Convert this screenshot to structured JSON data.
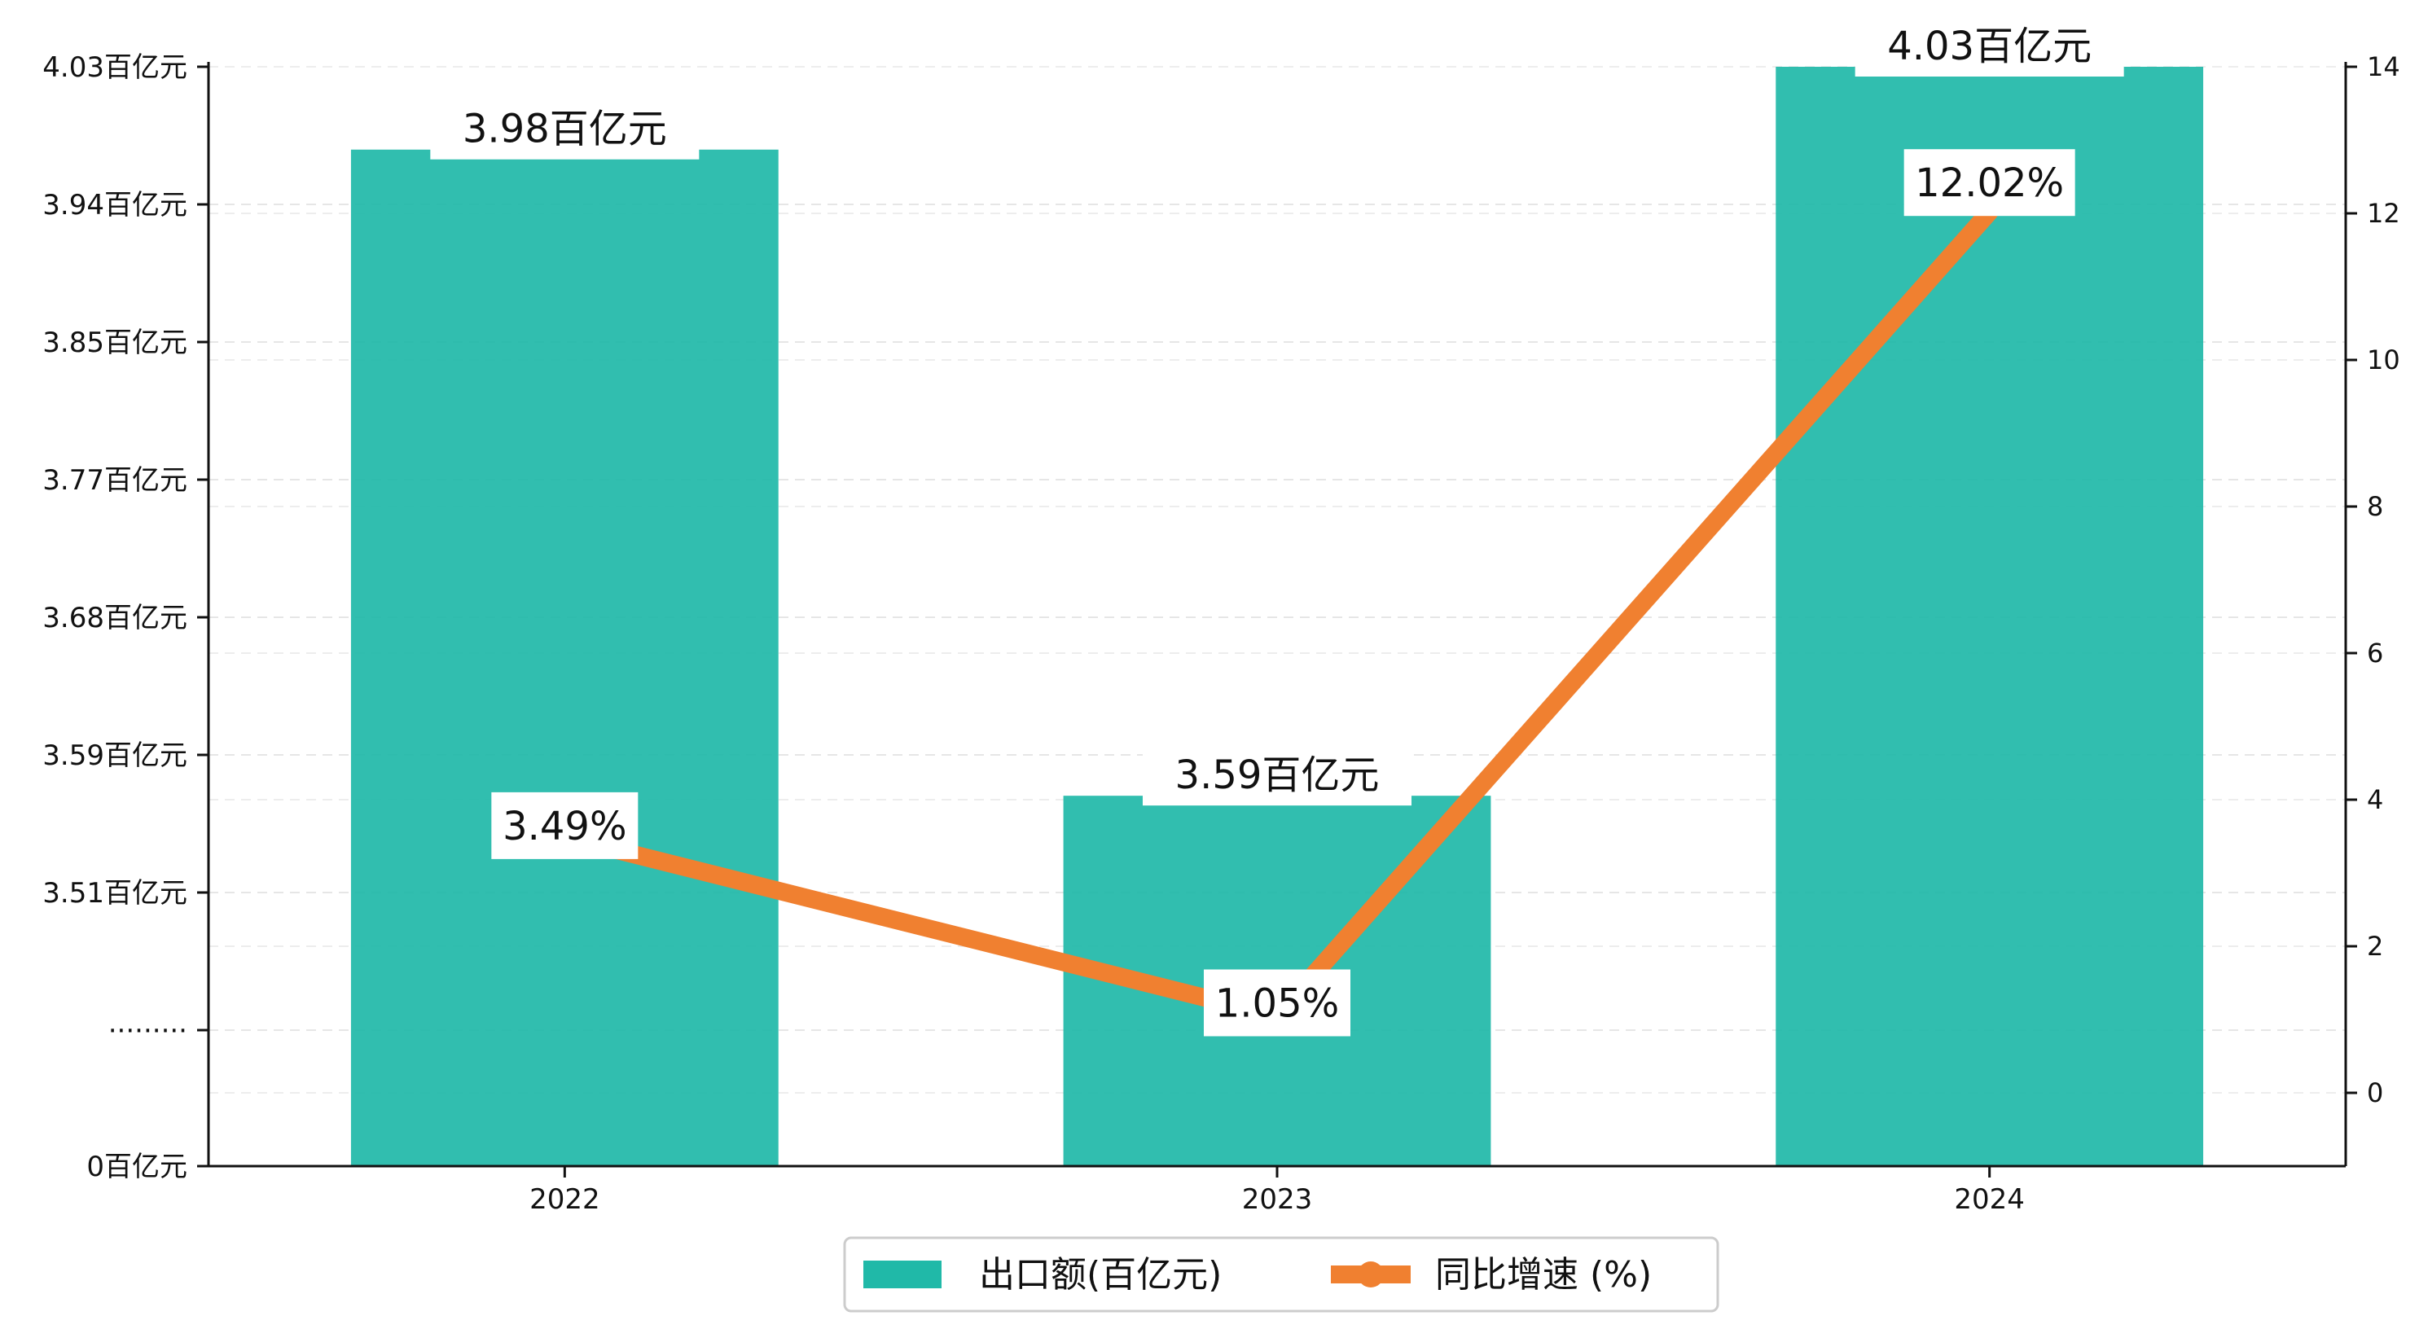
{
  "chart_data": {
    "type": "bar",
    "categories": [
      "2022",
      "2023",
      "2024"
    ],
    "series": [
      {
        "name": "出口额(百亿元)",
        "type": "bar",
        "axis": "left",
        "values": [
          3.98,
          3.59,
          4.03
        ],
        "labels": [
          "3.98百亿元",
          "3.59百亿元",
          "4.03百亿元"
        ],
        "color": "#20b9a8"
      },
      {
        "name": "同比增速 (%)",
        "type": "line",
        "axis": "right",
        "values": [
          3.49,
          1.05,
          12.02
        ],
        "labels": [
          "3.49%",
          "1.05%",
          "12.02%"
        ],
        "color": "#f08030"
      }
    ],
    "y_left": {
      "scale": "broken",
      "ylim": [
        3.45,
        4.03
      ],
      "tick_labels": [
        "4.03百亿元",
        "3.94百亿元",
        "3.85百亿元",
        "3.77百亿元",
        "3.68百亿元",
        "3.59百亿元",
        "3.51百亿元",
        "·········",
        "0百亿元"
      ]
    },
    "y_right": {
      "ylim": [
        -1,
        14
      ],
      "ticks": [
        0,
        2,
        4,
        6,
        8,
        10,
        12,
        14
      ],
      "tick_labels": [
        "0",
        "2",
        "4",
        "6",
        "8",
        "10",
        "12",
        "14"
      ]
    },
    "grid": true,
    "legend": {
      "position": "bottom-center"
    }
  }
}
